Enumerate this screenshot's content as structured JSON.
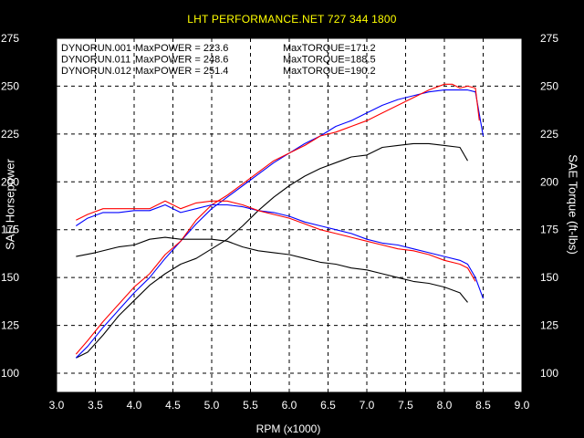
{
  "header": {
    "title": "LHT PERFORMANCE.NET  727 344 1800"
  },
  "chart_data": {
    "type": "line",
    "title": "LHT PERFORMANCE.NET  727 344 1800",
    "xlabel": "RPM (x1000)",
    "ylabel_left": "SAE Horsepower",
    "ylabel_right": "SAE Torque (ft-lbs)",
    "xlim": [
      3.0,
      9.0
    ],
    "ylim": [
      90,
      275
    ],
    "x_ticks": [
      "3.0",
      "3.5",
      "4.0",
      "4.5",
      "5.0",
      "5.5",
      "6.0",
      "6.5",
      "7.0",
      "7.5",
      "8.0",
      "8.5",
      "9.0"
    ],
    "y_ticks": [
      "100",
      "125",
      "150",
      "175",
      "200",
      "225",
      "250",
      "275"
    ],
    "grid": true,
    "legend_position": "top-left",
    "legend": [
      {
        "run": "DYNORUN.001",
        "power": "MaxPOWER = 223.6",
        "torque": "MaxTORQUE=171.2",
        "color": "#000000"
      },
      {
        "run": "DYNORUN.011",
        "power": "MaxPOWER = 248.6",
        "torque": "MaxTORQUE=188.5",
        "color": "#0000ff"
      },
      {
        "run": "DYNORUN.012",
        "power": "MaxPOWER = 251.4",
        "torque": "MaxTORQUE=190.2",
        "color": "#ff0000"
      }
    ],
    "series": [
      {
        "name": "DYNORUN.001",
        "measure": "SAE Horsepower",
        "color": "#000000",
        "x": [
          3.25,
          3.4,
          3.6,
          3.8,
          4.0,
          4.2,
          4.4,
          4.6,
          4.8,
          5.0,
          5.2,
          5.4,
          5.6,
          5.8,
          6.0,
          6.2,
          6.4,
          6.6,
          6.8,
          7.0,
          7.2,
          7.4,
          7.6,
          7.8,
          8.0,
          8.2,
          8.3
        ],
        "y": [
          108,
          111,
          120,
          130,
          138,
          146,
          152,
          157,
          160,
          165,
          170,
          177,
          185,
          192,
          198,
          203,
          207,
          210,
          213,
          214,
          218,
          219,
          220,
          220,
          219,
          218,
          211
        ]
      },
      {
        "name": "DYNORUN.011",
        "measure": "SAE Horsepower",
        "color": "#0000ff",
        "x": [
          3.25,
          3.4,
          3.6,
          3.8,
          4.0,
          4.2,
          4.4,
          4.6,
          4.8,
          5.0,
          5.2,
          5.4,
          5.6,
          5.8,
          6.0,
          6.2,
          6.4,
          6.6,
          6.8,
          7.0,
          7.2,
          7.4,
          7.6,
          7.8,
          8.0,
          8.2,
          8.3,
          8.4,
          8.5
        ],
        "y": [
          108,
          114,
          124,
          133,
          142,
          150,
          160,
          169,
          178,
          186,
          192,
          198,
          204,
          210,
          215,
          220,
          224,
          229,
          232,
          236,
          240,
          243,
          245,
          247,
          248,
          248,
          248,
          247,
          224
        ]
      },
      {
        "name": "DYNORUN.012",
        "measure": "SAE Horsepower",
        "color": "#ff0000",
        "x": [
          3.25,
          3.4,
          3.6,
          3.8,
          4.0,
          4.2,
          4.4,
          4.6,
          4.8,
          5.0,
          5.2,
          5.4,
          5.6,
          5.8,
          6.0,
          6.2,
          6.4,
          6.6,
          6.8,
          7.0,
          7.2,
          7.4,
          7.6,
          7.8,
          8.0,
          8.1,
          8.2,
          8.3,
          8.4,
          8.45
        ],
        "y": [
          110,
          117,
          127,
          136,
          145,
          152,
          162,
          169,
          180,
          188,
          193,
          199,
          205,
          211,
          215,
          219,
          224,
          226,
          229,
          232,
          236,
          240,
          244,
          248,
          251,
          251,
          249,
          250,
          249,
          232
        ]
      },
      {
        "name": "DYNORUN.001",
        "measure": "SAE Torque (ft-lbs)",
        "color": "#000000",
        "x": [
          3.25,
          3.5,
          3.8,
          4.0,
          4.2,
          4.4,
          4.6,
          4.8,
          5.0,
          5.2,
          5.4,
          5.6,
          5.8,
          6.0,
          6.2,
          6.4,
          6.6,
          6.8,
          7.0,
          7.2,
          7.4,
          7.6,
          7.8,
          8.0,
          8.2,
          8.3
        ],
        "y": [
          161,
          163,
          166,
          167,
          170,
          171,
          170,
          170,
          170,
          169,
          166,
          164,
          163,
          162,
          160,
          158,
          157,
          155,
          154,
          152,
          150,
          148,
          147,
          145,
          142,
          137
        ]
      },
      {
        "name": "DYNORUN.011",
        "measure": "SAE Torque (ft-lbs)",
        "color": "#0000ff",
        "x": [
          3.25,
          3.4,
          3.6,
          3.8,
          4.0,
          4.2,
          4.4,
          4.6,
          4.8,
          5.0,
          5.2,
          5.4,
          5.6,
          5.8,
          6.0,
          6.2,
          6.4,
          6.6,
          6.8,
          7.0,
          7.2,
          7.4,
          7.6,
          7.8,
          8.0,
          8.2,
          8.3,
          8.4,
          8.5
        ],
        "y": [
          177,
          181,
          184,
          184,
          185,
          185,
          188,
          184,
          186,
          188,
          188,
          187,
          185,
          184,
          182,
          179,
          177,
          175,
          173,
          170,
          168,
          167,
          165,
          163,
          161,
          159,
          157,
          150,
          139
        ]
      },
      {
        "name": "DYNORUN.012",
        "measure": "SAE Torque (ft-lbs)",
        "color": "#ff0000",
        "x": [
          3.25,
          3.4,
          3.6,
          3.8,
          4.0,
          4.2,
          4.4,
          4.6,
          4.8,
          5.0,
          5.2,
          5.4,
          5.6,
          5.8,
          6.0,
          6.2,
          6.4,
          6.6,
          6.8,
          7.0,
          7.2,
          7.4,
          7.6,
          7.8,
          8.0,
          8.2,
          8.3,
          8.4
        ],
        "y": [
          180,
          183,
          186,
          186,
          186,
          186,
          190,
          186,
          189,
          190,
          190,
          188,
          185,
          183,
          181,
          178,
          175,
          173,
          171,
          169,
          167,
          165,
          164,
          162,
          159,
          157,
          155,
          148
        ]
      }
    ]
  }
}
